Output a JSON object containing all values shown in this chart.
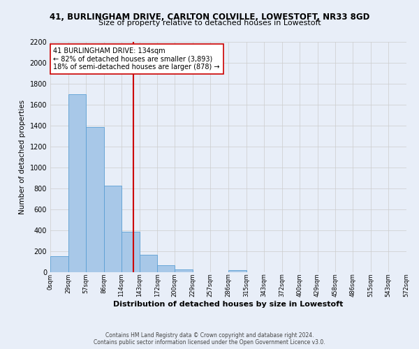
{
  "title_line1": "41, BURLINGHAM DRIVE, CARLTON COLVILLE, LOWESTOFT, NR33 8GD",
  "title_line2": "Size of property relative to detached houses in Lowestoft",
  "xlabel": "Distribution of detached houses by size in Lowestoft",
  "ylabel": "Number of detached properties",
  "bins": [
    0,
    29,
    57,
    86,
    114,
    143,
    172,
    200,
    229,
    257,
    286,
    315,
    343,
    372,
    400,
    429,
    458,
    486,
    515,
    543,
    572
  ],
  "counts": [
    155,
    1700,
    1390,
    830,
    385,
    165,
    65,
    28,
    0,
    0,
    22,
    0,
    0,
    0,
    0,
    0,
    0,
    0,
    0,
    0
  ],
  "bar_color": "#a8c8e8",
  "bar_edge_color": "#5a9fd4",
  "vline_color": "#cc0000",
  "vline_x": 134,
  "annotation_title": "41 BURLINGHAM DRIVE: 134sqm",
  "annotation_line1": "← 82% of detached houses are smaller (3,893)",
  "annotation_line2": "18% of semi-detached houses are larger (878) →",
  "annotation_box_color": "#ffffff",
  "annotation_box_edge": "#cc0000",
  "ylim": [
    0,
    2200
  ],
  "yticks": [
    0,
    200,
    400,
    600,
    800,
    1000,
    1200,
    1400,
    1600,
    1800,
    2000,
    2200
  ],
  "xtick_labels": [
    "0sqm",
    "29sqm",
    "57sqm",
    "86sqm",
    "114sqm",
    "143sqm",
    "172sqm",
    "200sqm",
    "229sqm",
    "257sqm",
    "286sqm",
    "315sqm",
    "343sqm",
    "372sqm",
    "400sqm",
    "429sqm",
    "458sqm",
    "486sqm",
    "515sqm",
    "543sqm",
    "572sqm"
  ],
  "grid_color": "#cccccc",
  "bg_color": "#e8eef8",
  "footnote1": "Contains HM Land Registry data © Crown copyright and database right 2024.",
  "footnote2": "Contains public sector information licensed under the Open Government Licence v3.0."
}
